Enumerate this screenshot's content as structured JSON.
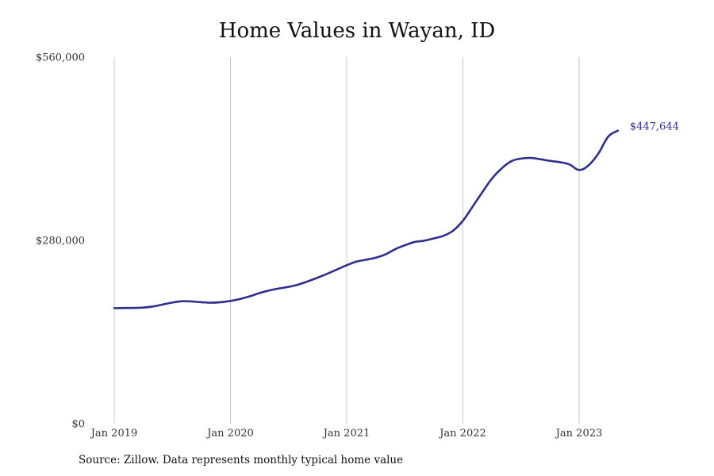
{
  "chart_data": {
    "type": "line",
    "title": "Home Values in Wayan, ID",
    "xlabel": "",
    "ylabel": "",
    "x_ticks": [
      "Jan 2019",
      "Jan 2020",
      "Jan 2021",
      "Jan 2022",
      "Jan 2023"
    ],
    "y_ticks": [
      "$0",
      "$280,000",
      "$560,000"
    ],
    "y_tick_values": [
      0,
      280000,
      560000
    ],
    "ylim": [
      0,
      560000
    ],
    "xlim": [
      "2018-08",
      "2023-12"
    ],
    "grid": "vertical",
    "line_color": "#2e2f8c",
    "end_label": "$447,644",
    "series": [
      {
        "x": [
          "2019-01",
          "2019-02",
          "2019-03",
          "2019-04",
          "2019-05",
          "2019-06",
          "2019-07",
          "2019-08",
          "2019-09",
          "2019-10",
          "2019-11",
          "2019-12",
          "2020-01",
          "2020-02",
          "2020-03",
          "2020-04",
          "2020-05",
          "2020-06",
          "2020-07",
          "2020-08",
          "2020-09",
          "2020-10",
          "2020-11",
          "2020-12",
          "2021-01",
          "2021-02",
          "2021-03",
          "2021-04",
          "2021-05",
          "2021-06",
          "2021-07",
          "2021-08",
          "2021-09",
          "2021-10",
          "2021-11",
          "2021-12",
          "2022-01",
          "2022-02",
          "2022-03",
          "2022-04",
          "2022-05",
          "2022-06",
          "2022-07",
          "2022-08",
          "2022-09",
          "2022-10",
          "2022-11",
          "2022-12",
          "2023-01",
          "2023-02",
          "2023-03",
          "2023-04",
          "2023-05"
        ],
        "values": [
          176500,
          176700,
          176800,
          177300,
          179000,
          182000,
          185000,
          187000,
          186700,
          185500,
          184800,
          185500,
          187500,
          190500,
          194500,
          199500,
          203500,
          206500,
          209000,
          212500,
          217500,
          223000,
          229000,
          235500,
          242000,
          247500,
          250500,
          253500,
          258500,
          266500,
          272500,
          277500,
          279500,
          283000,
          287000,
          295000,
          310000,
          331500,
          353500,
          374500,
          390000,
          401000,
          405000,
          406000,
          404000,
          401500,
          399500,
          396000,
          387500,
          395000,
          413000,
          438500,
          447644
        ]
      }
    ]
  },
  "footer": {
    "source": "Source: Zillow. Data represents monthly typical home value"
  }
}
